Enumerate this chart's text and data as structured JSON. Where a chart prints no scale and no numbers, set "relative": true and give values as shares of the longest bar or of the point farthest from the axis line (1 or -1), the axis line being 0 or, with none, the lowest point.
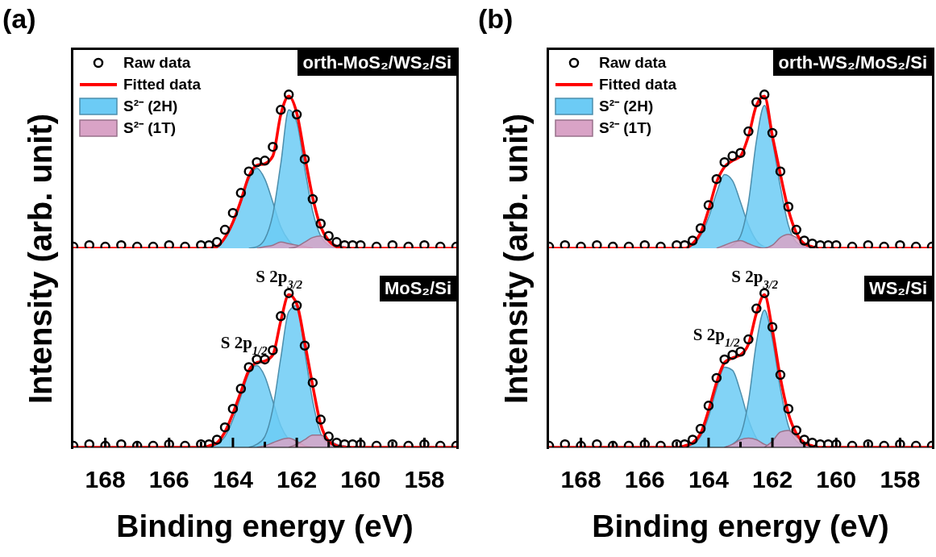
{
  "chart_data": [
    {
      "type": "line",
      "title": "(a)",
      "ylabel": "Intensity (arb. unit)",
      "relative": true,
      "tick_labels": false,
      "legend": "top left",
      "xlim": [
        169,
        157
      ],
      "x": [
        169,
        168.5,
        168,
        167.5,
        167,
        166.5,
        166,
        165.5,
        165,
        164.75,
        164.5,
        164.25,
        164,
        163.75,
        163.5,
        163.25,
        163,
        162.75,
        162.5,
        162.25,
        162,
        161.75,
        161.5,
        161.25,
        161,
        160.75,
        160.5,
        160.25,
        160,
        159.5,
        159,
        158.5,
        158,
        157.5,
        157
      ],
      "annotations": [
        "orth-MoS₂/WS₂/Si"
      ],
      "series": [
        {
          "name": "Raw data",
          "type": "scatter",
          "marker": "circle",
          "color": "#000000",
          "values": [
            0.01,
            0.02,
            0.01,
            0.02,
            0.01,
            0.01,
            0.02,
            0.01,
            0.02,
            0.02,
            0.04,
            0.12,
            0.23,
            0.36,
            0.5,
            0.56,
            0.57,
            0.66,
            0.9,
            1,
            0.87,
            0.58,
            0.32,
            0.16,
            0.08,
            0.04,
            0.02,
            0.02,
            0.02,
            0.01,
            0.02,
            0.01,
            0.02,
            0.01,
            0.01
          ]
        },
        {
          "name": "Fitted data",
          "type": "line",
          "color": "#ff0000",
          "values": [
            0,
            0,
            0,
            0,
            0,
            0,
            0,
            0,
            0,
            0,
            0.01,
            0.07,
            0.17,
            0.31,
            0.47,
            0.54,
            0.55,
            0.6,
            0.87,
            0.99,
            0.88,
            0.6,
            0.33,
            0.14,
            0.05,
            0.01,
            0,
            0,
            0,
            0,
            0,
            0,
            0,
            0,
            0
          ]
        },
        {
          "name": "S²⁻ (2H)",
          "type": "area",
          "color": "#6ccbf5",
          "x": [
            164.75,
            164.5,
            164.25,
            164,
            163.75,
            163.5,
            163.25,
            163,
            162.75,
            162.5,
            162.25,
            162,
            161.75
          ],
          "values": [
            0,
            0.01,
            0.06,
            0.16,
            0.3,
            0.45,
            0.52,
            0.45,
            0.3,
            0.14,
            0.05,
            0.01,
            0
          ]
        },
        {
          "type": "area",
          "color": "#6ccbf5",
          "x": [
            163.5,
            163.25,
            163,
            162.75,
            162.5,
            162.25,
            162,
            161.75,
            161.5,
            161.25,
            161,
            160.75,
            160.5
          ],
          "values": [
            0,
            0.01,
            0.06,
            0.22,
            0.55,
            0.9,
            0.82,
            0.52,
            0.24,
            0.08,
            0.02,
            0,
            0
          ]
        },
        {
          "name": "S²⁻ (1T)",
          "type": "area",
          "color": "#d9a3c6",
          "x": [
            163.25,
            163,
            162.75,
            162.5,
            162.25,
            162,
            161.75,
            161.5
          ],
          "values": [
            0,
            0.01,
            0.02,
            0.04,
            0.03,
            0.02,
            0.01,
            0
          ]
        },
        {
          "type": "area",
          "color": "#d9a3c6",
          "x": [
            162.25,
            162,
            161.75,
            161.5,
            161.25,
            161,
            160.75,
            160.5,
            160.25
          ],
          "values": [
            0,
            0.01,
            0.04,
            0.07,
            0.08,
            0.05,
            0.02,
            0.01,
            0
          ]
        }
      ]
    },
    {
      "type": "line",
      "xlabel": "Binding energy (eV)",
      "relative": true,
      "tick_labels": "x",
      "xlim": [
        169,
        157
      ],
      "xticks": [
        168,
        {
          "value": 167,
          "label": null
        },
        166,
        {
          "value": 165,
          "label": null
        },
        164,
        {
          "value": 163,
          "label": null
        },
        162,
        {
          "value": 161,
          "label": null
        },
        160,
        {
          "value": 159,
          "label": null
        },
        158
      ],
      "x": [
        169,
        168.5,
        168,
        167.5,
        167,
        166.5,
        166,
        165.5,
        165,
        164.75,
        164.5,
        164.25,
        164,
        163.75,
        163.5,
        163.25,
        163,
        162.75,
        162.5,
        162.25,
        162,
        161.75,
        161.5,
        161.25,
        161,
        160.75,
        160.5,
        160.25,
        160,
        159.5,
        159,
        158.5,
        158,
        157.5,
        157
      ],
      "annotations": [
        {
          "text": "S 2p$_{1/2}$",
          "x": 163.3,
          "y": 0.55
        },
        {
          "text": "S 2p$_{3/2}$",
          "x": 162.2,
          "y": 1
        },
        "MoS₂/Si"
      ],
      "series": [
        {
          "type": "scatter",
          "marker": "circle",
          "color": "#000000",
          "values": [
            0.01,
            0.02,
            0.01,
            0.02,
            0.01,
            0.01,
            0.02,
            0.01,
            0.02,
            0.02,
            0.05,
            0.13,
            0.25,
            0.38,
            0.52,
            0.57,
            0.57,
            0.63,
            0.85,
            1,
            0.92,
            0.66,
            0.42,
            0.18,
            0.07,
            0.03,
            0.02,
            0.02,
            0.02,
            0.01,
            0.02,
            0.01,
            0.02,
            0.01,
            0.01
          ]
        },
        {
          "type": "line",
          "color": "#ff0000",
          "values": [
            0,
            0,
            0,
            0,
            0,
            0,
            0,
            0,
            0,
            0.01,
            0.03,
            0.1,
            0.22,
            0.36,
            0.5,
            0.55,
            0.56,
            0.6,
            0.82,
            0.99,
            0.93,
            0.68,
            0.4,
            0.15,
            0.04,
            0.01,
            0,
            0,
            0,
            0,
            0,
            0,
            0,
            0,
            0
          ]
        },
        {
          "type": "area",
          "color": "#6ccbf5",
          "x": [
            164.75,
            164.5,
            164.25,
            164,
            163.75,
            163.5,
            163.25,
            163,
            162.75,
            162.5,
            162.25,
            162,
            161.75
          ],
          "values": [
            0,
            0.02,
            0.07,
            0.18,
            0.33,
            0.48,
            0.53,
            0.46,
            0.3,
            0.14,
            0.05,
            0.01,
            0
          ]
        },
        {
          "type": "area",
          "color": "#6ccbf5",
          "x": [
            163.5,
            163.25,
            163,
            162.75,
            162.5,
            162.25,
            162,
            161.75,
            161.5,
            161.25,
            161,
            160.75,
            160.5
          ],
          "values": [
            0,
            0.02,
            0.07,
            0.25,
            0.58,
            0.88,
            0.92,
            0.62,
            0.3,
            0.09,
            0.02,
            0,
            0
          ]
        },
        {
          "type": "area",
          "color": "#d9a3c6",
          "x": [
            163.25,
            163,
            162.75,
            162.5,
            162.25,
            162,
            161.75,
            161.5
          ],
          "values": [
            0,
            0.01,
            0.03,
            0.05,
            0.06,
            0.04,
            0.01,
            0
          ]
        },
        {
          "type": "area",
          "color": "#d9a3c6",
          "x": [
            162.25,
            162,
            161.75,
            161.5,
            161.25,
            161,
            160.75,
            160.5,
            160.25
          ],
          "values": [
            0,
            0.02,
            0.05,
            0.08,
            0.08,
            0.05,
            0.02,
            0.01,
            0
          ]
        }
      ]
    },
    {
      "type": "line",
      "title": "(b)",
      "ylabel": "Intensity (arb. unit)",
      "relative": true,
      "tick_labels": false,
      "legend": "top left",
      "xlim": [
        169,
        157
      ],
      "x": [
        169,
        168.5,
        168,
        167.5,
        167,
        166.5,
        166,
        165.5,
        165,
        164.75,
        164.5,
        164.25,
        164,
        163.75,
        163.5,
        163.25,
        163,
        162.75,
        162.5,
        162.25,
        162,
        161.75,
        161.5,
        161.25,
        161,
        160.75,
        160.5,
        160.25,
        160,
        159.5,
        159,
        158.5,
        158,
        157.5,
        157
      ],
      "annotations": [
        "orth-WS₂/MoS₂/Si"
      ],
      "series": [
        {
          "name": "Raw data",
          "type": "scatter",
          "marker": "circle",
          "color": "#000000",
          "values": [
            0.01,
            0.02,
            0.01,
            0.02,
            0.01,
            0.01,
            0.02,
            0.01,
            0.02,
            0.02,
            0.05,
            0.13,
            0.28,
            0.45,
            0.56,
            0.6,
            0.62,
            0.76,
            0.95,
            1,
            0.75,
            0.5,
            0.27,
            0.12,
            0.05,
            0.03,
            0.02,
            0.02,
            0.02,
            0.01,
            0.02,
            0.01,
            0.02,
            0.01,
            0.01
          ]
        },
        {
          "name": "Fitted data",
          "type": "line",
          "color": "#ff0000",
          "values": [
            0,
            0,
            0,
            0,
            0,
            0,
            0,
            0,
            0,
            0,
            0.03,
            0.1,
            0.25,
            0.43,
            0.53,
            0.57,
            0.6,
            0.73,
            0.93,
            0.99,
            0.73,
            0.48,
            0.25,
            0.1,
            0.03,
            0.01,
            0,
            0,
            0,
            0,
            0,
            0,
            0,
            0,
            0
          ]
        },
        {
          "name": "S²⁻ (2H)",
          "type": "area",
          "color": "#6ccbf5",
          "x": [
            164.75,
            164.5,
            164.25,
            164,
            163.75,
            163.5,
            163.25,
            163,
            162.75,
            162.5,
            162.25,
            162,
            161.75
          ],
          "values": [
            0,
            0.02,
            0.08,
            0.2,
            0.36,
            0.48,
            0.44,
            0.3,
            0.15,
            0.05,
            0.01,
            0,
            0
          ]
        },
        {
          "type": "area",
          "color": "#6ccbf5",
          "x": [
            163.5,
            163.25,
            163,
            162.75,
            162.5,
            162.25,
            162,
            161.75,
            161.5,
            161.25,
            161,
            160.75,
            160.5
          ],
          "values": [
            0,
            0.02,
            0.08,
            0.3,
            0.7,
            0.93,
            0.7,
            0.4,
            0.15,
            0.04,
            0.01,
            0,
            0
          ]
        },
        {
          "name": "S²⁻ (1T)",
          "type": "area",
          "color": "#d9a3c6",
          "x": [
            163.75,
            163.5,
            163.25,
            163,
            162.75,
            162.5,
            162.25,
            162
          ],
          "values": [
            0,
            0.02,
            0.04,
            0.05,
            0.03,
            0.01,
            0,
            0
          ]
        },
        {
          "type": "area",
          "color": "#d9a3c6",
          "x": [
            162.25,
            162,
            161.75,
            161.5,
            161.25,
            161,
            160.75,
            160.5,
            160.25
          ],
          "values": [
            0,
            0.02,
            0.07,
            0.09,
            0.07,
            0.03,
            0.01,
            0,
            0
          ]
        }
      ]
    },
    {
      "type": "line",
      "xlabel": "Binding energy (eV)",
      "relative": true,
      "tick_labels": "x",
      "xlim": [
        169,
        157
      ],
      "xticks": [
        168,
        {
          "value": 167,
          "label": null
        },
        166,
        {
          "value": 165,
          "label": null
        },
        164,
        {
          "value": 163,
          "label": null
        },
        162,
        {
          "value": 161,
          "label": null
        },
        160,
        {
          "value": 159,
          "label": null
        },
        158
      ],
      "x": [
        169,
        168.5,
        168,
        167.5,
        167,
        166.5,
        166,
        165.5,
        165,
        164.75,
        164.5,
        164.25,
        164,
        163.75,
        163.5,
        163.25,
        163,
        162.75,
        162.5,
        162.25,
        162,
        161.75,
        161.5,
        161.25,
        161,
        160.75,
        160.5,
        160.25,
        160,
        159.5,
        159,
        158.5,
        158,
        157.5,
        157
      ],
      "annotations": [
        {
          "text": "S 2p$_{1/2}$",
          "x": 163.4,
          "y": 0.55
        },
        {
          "text": "S 2p$_{3/2}$",
          "x": 162.2,
          "y": 1
        },
        "WS₂/Si"
      ],
      "series": [
        {
          "type": "scatter",
          "marker": "circle",
          "color": "#000000",
          "values": [
            0.01,
            0.02,
            0.01,
            0.02,
            0.01,
            0.01,
            0.02,
            0.01,
            0.02,
            0.02,
            0.05,
            0.12,
            0.27,
            0.45,
            0.57,
            0.6,
            0.62,
            0.7,
            0.9,
            1,
            0.78,
            0.47,
            0.25,
            0.11,
            0.05,
            0.03,
            0.02,
            0.02,
            0.02,
            0.01,
            0.02,
            0.01,
            0.02,
            0.01,
            0.01
          ]
        },
        {
          "type": "line",
          "color": "#ff0000",
          "values": [
            0,
            0,
            0,
            0,
            0,
            0,
            0,
            0,
            0,
            0.01,
            0.03,
            0.09,
            0.24,
            0.42,
            0.55,
            0.58,
            0.6,
            0.67,
            0.87,
            0.99,
            0.76,
            0.45,
            0.22,
            0.09,
            0.03,
            0.01,
            0,
            0,
            0,
            0,
            0,
            0,
            0,
            0,
            0
          ]
        },
        {
          "type": "area",
          "color": "#6ccbf5",
          "x": [
            164.75,
            164.5,
            164.25,
            164,
            163.75,
            163.5,
            163.25,
            163,
            162.75,
            162.5,
            162.25,
            162,
            161.75
          ],
          "values": [
            0,
            0.02,
            0.07,
            0.2,
            0.38,
            0.52,
            0.5,
            0.36,
            0.18,
            0.06,
            0.01,
            0,
            0
          ]
        },
        {
          "type": "area",
          "color": "#6ccbf5",
          "x": [
            163.5,
            163.25,
            163,
            162.75,
            162.5,
            162.25,
            162,
            161.75,
            161.5,
            161.25,
            161,
            160.75,
            160.5
          ],
          "values": [
            0,
            0.02,
            0.08,
            0.3,
            0.68,
            0.89,
            0.7,
            0.38,
            0.14,
            0.04,
            0.01,
            0,
            0
          ]
        },
        {
          "type": "area",
          "color": "#d9a3c6",
          "x": [
            163.5,
            163.25,
            163,
            162.75,
            162.5,
            162.25,
            162
          ],
          "values": [
            0,
            0.02,
            0.05,
            0.06,
            0.05,
            0.02,
            0
          ]
        },
        {
          "type": "area",
          "color": "#d9a3c6",
          "x": [
            162.25,
            162,
            161.75,
            161.5,
            161.25,
            161,
            160.75,
            160.5,
            160.25
          ],
          "values": [
            0,
            0.04,
            0.1,
            0.11,
            0.07,
            0.03,
            0.01,
            0,
            0
          ]
        }
      ]
    }
  ]
}
